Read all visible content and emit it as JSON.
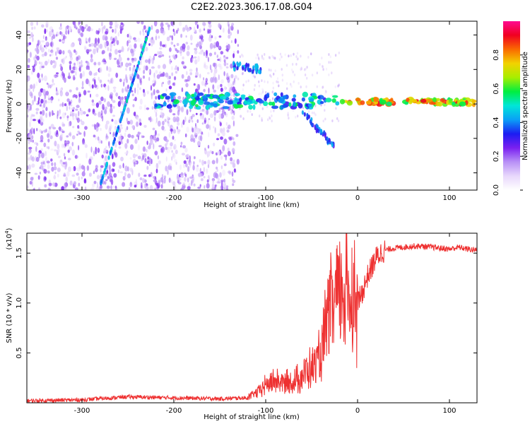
{
  "title": "C2E2.2023.306.17.08.G04",
  "chart_data": [
    {
      "type": "heatmap",
      "xlabel": "Height of straight line (km)",
      "ylabel": "Frequency (Hz)",
      "xlim": [
        -360,
        130
      ],
      "ylim": [
        -50,
        48
      ],
      "x_ticks": [
        -300,
        -200,
        -100,
        0,
        100
      ],
      "x_tick_labels": [
        "-300",
        "-200",
        "-100",
        "0",
        "100"
      ],
      "y_ticks": [
        -40,
        -20,
        0,
        20,
        40
      ],
      "y_tick_labels": [
        "-40",
        "-20",
        "0",
        "20",
        "40"
      ],
      "colorbar": {
        "label": "Normalized spectral amplitude",
        "range": [
          0,
          1
        ],
        "ticks": [
          0.0,
          0.2,
          0.4,
          0.6,
          0.8
        ],
        "tick_labels": [
          "0.0",
          "0.2",
          "0.4",
          "0.6",
          "0.8"
        ],
        "colormap": [
          "#ffffff",
          "#e8d8fc",
          "#b890f6",
          "#7a20f0",
          "#1c1cf2",
          "#0aa0f6",
          "#00e6d8",
          "#00ee40",
          "#a8ee00",
          "#f2d200",
          "#fa6a00",
          "#f00020",
          "#ff0a90"
        ]
      },
      "features": [
        {
          "name": "diagonal streak",
          "x": [
            -280,
            -225
          ],
          "y": [
            -47,
            46
          ],
          "level": 0.4
        },
        {
          "name": "horizontal band",
          "x": [
            -220,
            130
          ],
          "y": [
            2,
            1
          ],
          "level": 0.9
        },
        {
          "name": "upper branch",
          "x": [
            -135,
            -105
          ],
          "y": [
            22,
            20
          ],
          "level": 0.3
        },
        {
          "name": "lower branch",
          "x": [
            -60,
            -25
          ],
          "y": [
            -5,
            -25
          ],
          "level": 0.25
        }
      ]
    },
    {
      "type": "line",
      "ylabel": "SNR (10 * v/v)",
      "yscale_label": "(x10",
      "yscale_exp": "4",
      "xlabel": "Height of straight line (km)",
      "xlim": [
        -360,
        130
      ],
      "ylim": [
        0,
        1.7
      ],
      "x_ticks": [
        -300,
        -200,
        -100,
        0,
        100
      ],
      "x_tick_labels": [
        "-300",
        "-200",
        "-100",
        "0",
        "100"
      ],
      "y_ticks": [
        0.5,
        1.0,
        1.5
      ],
      "y_tick_labels": [
        "0.5",
        "1.0",
        "1.5"
      ],
      "series": [
        {
          "color": "#ee3030",
          "x": [
            -360,
            -300,
            -250,
            -200,
            -150,
            -120,
            -110,
            -100,
            -90,
            -80,
            -70,
            -60,
            -50,
            -40,
            -35,
            -30,
            -25,
            -20,
            -15,
            -10,
            -5,
            0,
            5,
            10,
            15,
            20,
            25,
            30,
            40,
            50,
            60,
            70,
            80,
            90,
            100,
            110,
            120,
            130
          ],
          "values": [
            0.02,
            0.03,
            0.06,
            0.05,
            0.04,
            0.05,
            0.1,
            0.18,
            0.22,
            0.2,
            0.2,
            0.28,
            0.35,
            0.45,
            0.7,
            0.9,
            1.0,
            1.1,
            1.15,
            1.1,
            1.05,
            1.0,
            1.1,
            1.25,
            1.35,
            1.45,
            1.5,
            1.53,
            1.55,
            1.56,
            1.57,
            1.57,
            1.56,
            1.55,
            1.54,
            1.56,
            1.54,
            1.53
          ]
        }
      ]
    }
  ]
}
